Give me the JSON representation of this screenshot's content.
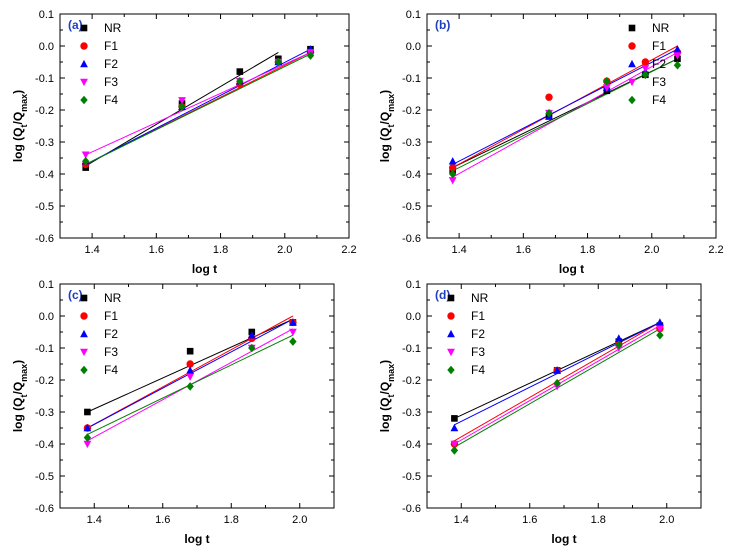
{
  "chart_data": [
    {
      "type": "scatter",
      "panel_label": "(a)",
      "xlabel": "log t",
      "ylabel": "log (Q_t/Q_max)",
      "xlim": [
        1.3,
        2.2
      ],
      "ylim": [
        -0.6,
        0.1
      ],
      "xticks": [
        "1.4",
        "1.6",
        "1.8",
        "2.0",
        "2.2"
      ],
      "yticks": [
        "-0.6",
        "-0.5",
        "-0.4",
        "-0.3",
        "-0.2",
        "-0.1",
        "0.0",
        "0.1"
      ],
      "legend_position": "top-left",
      "series": [
        {
          "name": "NR",
          "x": [
            1.38,
            1.68,
            1.86,
            1.98,
            2.08
          ],
          "y": [
            -0.38,
            -0.18,
            -0.08,
            -0.04,
            -0.01
          ],
          "fit": [
            [
              1.38,
              -0.375
            ],
            [
              1.98,
              -0.02
            ]
          ]
        },
        {
          "name": "F1",
          "x": [
            1.38,
            1.68,
            1.86,
            1.98,
            2.08
          ],
          "y": [
            -0.37,
            -0.19,
            -0.12,
            -0.05,
            -0.02
          ],
          "fit": [
            [
              1.38,
              -0.37
            ],
            [
              2.08,
              -0.02
            ]
          ]
        },
        {
          "name": "F2",
          "x": [
            1.38,
            1.68,
            1.86,
            1.98,
            2.08
          ],
          "y": [
            -0.36,
            -0.19,
            -0.11,
            -0.05,
            -0.01
          ],
          "fit": [
            [
              1.38,
              -0.37
            ],
            [
              2.08,
              -0.01
            ]
          ]
        },
        {
          "name": "F3",
          "x": [
            1.38,
            1.68,
            1.86,
            1.98,
            2.08
          ],
          "y": [
            -0.34,
            -0.17,
            -0.11,
            -0.05,
            -0.02
          ],
          "fit": [
            [
              1.38,
              -0.34
            ],
            [
              2.08,
              -0.02
            ]
          ]
        },
        {
          "name": "F4",
          "x": [
            1.38,
            1.68,
            1.86,
            1.98,
            2.08
          ],
          "y": [
            -0.36,
            -0.19,
            -0.11,
            -0.05,
            -0.03
          ],
          "fit": [
            [
              1.38,
              -0.37
            ],
            [
              2.08,
              -0.025
            ]
          ]
        }
      ]
    },
    {
      "type": "scatter",
      "panel_label": "(b)",
      "xlabel": "log t",
      "ylabel": "log (Q_t/Q_max)",
      "xlim": [
        1.3,
        2.2
      ],
      "ylim": [
        -0.6,
        0.1
      ],
      "xticks": [
        "1.4",
        "1.6",
        "1.8",
        "2.0",
        "2.2"
      ],
      "yticks": [
        "-0.6",
        "-0.5",
        "-0.4",
        "-0.3",
        "-0.2",
        "-0.1",
        "0.0",
        "0.1"
      ],
      "legend_position": "top-right",
      "series": [
        {
          "name": "NR",
          "x": [
            1.38,
            1.68,
            1.86,
            1.98,
            2.08
          ],
          "y": [
            -0.39,
            -0.22,
            -0.14,
            -0.09,
            -0.04
          ],
          "fit": [
            [
              1.38,
              -0.38
            ],
            [
              2.08,
              -0.04
            ]
          ]
        },
        {
          "name": "F1",
          "x": [
            1.38,
            1.68,
            1.86,
            1.98,
            2.08
          ],
          "y": [
            -0.38,
            -0.16,
            -0.11,
            -0.05,
            -0.02
          ],
          "fit": [
            [
              1.38,
              -0.38
            ],
            [
              2.08,
              0.0
            ]
          ]
        },
        {
          "name": "F2",
          "x": [
            1.38,
            1.68,
            1.86,
            1.98,
            2.08
          ],
          "y": [
            -0.36,
            -0.22,
            -0.13,
            -0.08,
            -0.01
          ],
          "fit": [
            [
              1.38,
              -0.37
            ],
            [
              2.08,
              -0.01
            ]
          ]
        },
        {
          "name": "F3",
          "x": [
            1.38,
            1.68,
            1.86,
            1.98,
            2.08
          ],
          "y": [
            -0.42,
            -0.21,
            -0.13,
            -0.07,
            -0.03
          ],
          "fit": [
            [
              1.38,
              -0.41
            ],
            [
              2.08,
              -0.02
            ]
          ]
        },
        {
          "name": "F4",
          "x": [
            1.38,
            1.68,
            1.86,
            1.98,
            2.08
          ],
          "y": [
            -0.4,
            -0.21,
            -0.11,
            -0.09,
            -0.06
          ],
          "fit": [
            [
              1.38,
              -0.39
            ],
            [
              2.08,
              -0.04
            ]
          ]
        }
      ]
    },
    {
      "type": "scatter",
      "panel_label": "(c)",
      "xlabel": "log t",
      "ylabel": "log (Q_t/Q_max)",
      "xlim": [
        1.3,
        2.1
      ],
      "ylim": [
        -0.6,
        0.1
      ],
      "xticks": [
        "1.4",
        "1.6",
        "1.8",
        "2.0"
      ],
      "yticks": [
        "-0.6",
        "-0.5",
        "-0.4",
        "-0.3",
        "-0.2",
        "-0.1",
        "0.0",
        "0.1"
      ],
      "legend_position": "top-left",
      "series": [
        {
          "name": "NR",
          "x": [
            1.38,
            1.68,
            1.86,
            1.98
          ],
          "y": [
            -0.3,
            -0.11,
            -0.05,
            -0.02
          ],
          "fit": [
            [
              1.38,
              -0.3
            ],
            [
              1.98,
              -0.01
            ]
          ]
        },
        {
          "name": "F1",
          "x": [
            1.38,
            1.68,
            1.86,
            1.98
          ],
          "y": [
            -0.35,
            -0.15,
            -0.07,
            -0.02
          ],
          "fit": [
            [
              1.38,
              -0.35
            ],
            [
              1.98,
              0.0
            ]
          ]
        },
        {
          "name": "F2",
          "x": [
            1.38,
            1.68,
            1.86,
            1.98
          ],
          "y": [
            -0.35,
            -0.17,
            -0.06,
            -0.02
          ],
          "fit": [
            [
              1.38,
              -0.35
            ],
            [
              1.98,
              -0.01
            ]
          ]
        },
        {
          "name": "F3",
          "x": [
            1.38,
            1.68,
            1.86,
            1.98
          ],
          "y": [
            -0.4,
            -0.19,
            -0.1,
            -0.05
          ],
          "fit": [
            [
              1.38,
              -0.39
            ],
            [
              1.98,
              -0.04
            ]
          ]
        },
        {
          "name": "F4",
          "x": [
            1.38,
            1.68,
            1.86,
            1.98
          ],
          "y": [
            -0.38,
            -0.22,
            -0.1,
            -0.08
          ],
          "fit": [
            [
              1.38,
              -0.37
            ],
            [
              1.98,
              -0.06
            ]
          ]
        }
      ]
    },
    {
      "type": "scatter",
      "panel_label": "(d)",
      "xlabel": "log t",
      "ylabel": "log (Q_t/Q_max)",
      "xlim": [
        1.3,
        2.1
      ],
      "ylim": [
        -0.6,
        0.1
      ],
      "xticks": [
        "1.4",
        "1.6",
        "1.8",
        "2.0"
      ],
      "yticks": [
        "-0.6",
        "-0.5",
        "-0.4",
        "-0.3",
        "-0.2",
        "-0.1",
        "0.0",
        "0.1"
      ],
      "legend_position": "top-left",
      "series": [
        {
          "name": "NR",
          "x": [
            1.38,
            1.68,
            1.86,
            1.98
          ],
          "y": [
            -0.32,
            -0.17,
            -0.08,
            -0.03
          ],
          "fit": [
            [
              1.38,
              -0.32
            ],
            [
              1.98,
              -0.02
            ]
          ]
        },
        {
          "name": "F1",
          "x": [
            1.38,
            1.68,
            1.86,
            1.98
          ],
          "y": [
            -0.4,
            -0.17,
            -0.09,
            -0.04
          ],
          "fit": [
            [
              1.38,
              -0.39
            ],
            [
              1.98,
              -0.02
            ]
          ]
        },
        {
          "name": "F2",
          "x": [
            1.38,
            1.68,
            1.86,
            1.98
          ],
          "y": [
            -0.35,
            -0.17,
            -0.07,
            -0.02
          ],
          "fit": [
            [
              1.38,
              -0.34
            ],
            [
              1.98,
              -0.02
            ]
          ]
        },
        {
          "name": "F3",
          "x": [
            1.38,
            1.68,
            1.86,
            1.98
          ],
          "y": [
            -0.4,
            -0.22,
            -0.1,
            -0.04
          ],
          "fit": [
            [
              1.38,
              -0.4
            ],
            [
              1.98,
              -0.03
            ]
          ]
        },
        {
          "name": "F4",
          "x": [
            1.38,
            1.68,
            1.86,
            1.98
          ],
          "y": [
            -0.42,
            -0.21,
            -0.09,
            -0.06
          ],
          "fit": [
            [
              1.38,
              -0.41
            ],
            [
              1.98,
              -0.04
            ]
          ]
        }
      ]
    }
  ],
  "series_style": {
    "NR": {
      "color": "#000000",
      "marker": "square"
    },
    "F1": {
      "color": "#ff0000",
      "marker": "circle"
    },
    "F2": {
      "color": "#0000ff",
      "marker": "triangle-up"
    },
    "F3": {
      "color": "#ff00ff",
      "marker": "triangle-down"
    },
    "F4": {
      "color": "#008000",
      "marker": "diamond"
    }
  }
}
